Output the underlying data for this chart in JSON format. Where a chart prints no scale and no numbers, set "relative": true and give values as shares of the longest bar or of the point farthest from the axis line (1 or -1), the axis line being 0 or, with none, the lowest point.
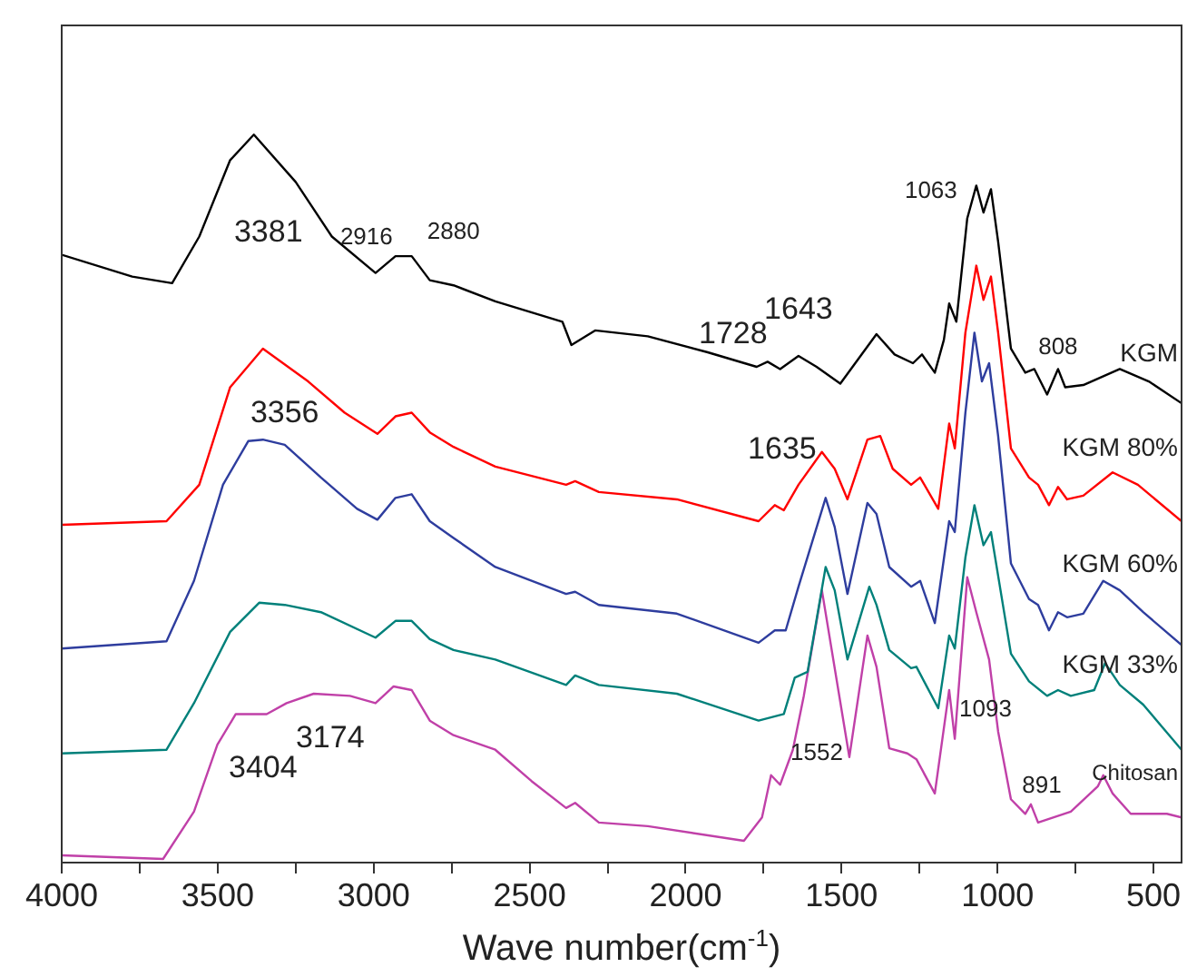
{
  "chart_data": {
    "type": "line",
    "xlabel": "Wave number(cm$^{-1}$)",
    "relative": true,
    "xlim": [
      4000,
      410
    ],
    "xticks": [
      4000,
      {
        "value": 3750,
        "label": null
      },
      3500,
      {
        "value": 3250,
        "label": null
      },
      3000,
      {
        "value": 2750,
        "label": null
      },
      2500,
      {
        "value": 2250,
        "label": null
      },
      2000,
      {
        "value": 1750,
        "label": null
      },
      1500,
      {
        "value": 1250,
        "label": null
      },
      1000,
      {
        "value": 750,
        "label": null
      },
      500
    ],
    "tick_labels": "x",
    "grid": false,
    "legend": false,
    "marker": "none",
    "line_style": "solid",
    "series": [
      {
        "name": "KGM",
        "color": "#000000",
        "x": [
          4000,
          3774,
          3646,
          3559,
          3460,
          3384,
          3250,
          3134,
          2994,
          2930,
          2878,
          2820,
          2744,
          2610,
          2395,
          2366,
          2290,
          2121,
          1929,
          1772,
          1737,
          1697,
          1638,
          1580,
          1504,
          1388,
          1330,
          1271,
          1242,
          1201,
          1172,
          1155,
          1132,
          1097,
          1068,
          1045,
          1021,
          998,
          957,
          911,
          882,
          841,
          806,
          783,
          725,
          608,
          515,
          410
        ],
        "values": [
          0.835,
          0.805,
          0.796,
          0.86,
          0.965,
          1,
          0.935,
          0.86,
          0.81,
          0.833,
          0.833,
          0.8,
          0.793,
          0.771,
          0.743,
          0.711,
          0.731,
          0.723,
          0.701,
          0.681,
          0.688,
          0.678,
          0.696,
          0.681,
          0.658,
          0.726,
          0.698,
          0.686,
          0.698,
          0.673,
          0.718,
          0.768,
          0.743,
          0.885,
          0.93,
          0.893,
          0.925,
          0.853,
          0.706,
          0.673,
          0.678,
          0.643,
          0.678,
          0.653,
          0.656,
          0.678,
          0.661,
          0.631
        ]
      },
      {
        "name": "KGM 80%",
        "color": "#ff0000",
        "x": [
          4000,
          3664,
          3559,
          3460,
          3355,
          3210,
          3093,
          2988,
          2930,
          2878,
          2820,
          2744,
          2610,
          2383,
          2354,
          2278,
          2028,
          1766,
          1714,
          1685,
          1638,
          1563,
          1522,
          1481,
          1417,
          1376,
          1336,
          1277,
          1248,
          1190,
          1155,
          1137,
          1103,
          1068,
          1045,
          1021,
          998,
          957,
          899,
          870,
          835,
          806,
          777,
          725,
          631,
          550,
          410
        ],
        "values": [
          0.464,
          0.469,
          0.519,
          0.653,
          0.706,
          0.661,
          0.618,
          0.589,
          0.613,
          0.618,
          0.591,
          0.571,
          0.544,
          0.519,
          0.524,
          0.509,
          0.499,
          0.469,
          0.491,
          0.484,
          0.519,
          0.564,
          0.541,
          0.499,
          0.581,
          0.586,
          0.541,
          0.519,
          0.529,
          0.486,
          0.603,
          0.569,
          0.728,
          0.82,
          0.773,
          0.805,
          0.728,
          0.569,
          0.529,
          0.519,
          0.491,
          0.516,
          0.499,
          0.504,
          0.536,
          0.519,
          0.469
        ]
      },
      {
        "name": "KGM 60%",
        "color": "#2e3d9e",
        "x": [
          4000,
          3664,
          3576,
          3483,
          3402,
          3355,
          3285,
          3169,
          3053,
          2988,
          2930,
          2878,
          2820,
          2744,
          2610,
          2383,
          2354,
          2278,
          2028,
          1766,
          1714,
          1679,
          1638,
          1551,
          1522,
          1481,
          1417,
          1388,
          1347,
          1277,
          1248,
          1201,
          1155,
          1137,
          1103,
          1074,
          1050,
          1027,
          998,
          957,
          899,
          870,
          835,
          806,
          777,
          725,
          661,
          608,
          533,
          410
        ],
        "values": [
          0.294,
          0.304,
          0.387,
          0.519,
          0.579,
          0.581,
          0.574,
          0.529,
          0.486,
          0.471,
          0.501,
          0.506,
          0.469,
          0.446,
          0.406,
          0.369,
          0.372,
          0.354,
          0.342,
          0.302,
          0.319,
          0.319,
          0.379,
          0.501,
          0.461,
          0.369,
          0.494,
          0.479,
          0.406,
          0.379,
          0.387,
          0.329,
          0.469,
          0.454,
          0.618,
          0.728,
          0.661,
          0.686,
          0.586,
          0.411,
          0.362,
          0.354,
          0.319,
          0.344,
          0.337,
          0.342,
          0.387,
          0.374,
          0.344,
          0.299
        ]
      },
      {
        "name": "KGM 33%",
        "color": "#00807a",
        "x": [
          4000,
          3664,
          3576,
          3460,
          3367,
          3285,
          3169,
          2994,
          2930,
          2878,
          2820,
          2744,
          2610,
          2383,
          2354,
          2278,
          2028,
          1766,
          1685,
          1650,
          1609,
          1551,
          1522,
          1481,
          1411,
          1388,
          1347,
          1277,
          1260,
          1190,
          1155,
          1137,
          1103,
          1074,
          1045,
          1021,
          998,
          957,
          899,
          841,
          806,
          765,
          690,
          655,
          608,
          533,
          410
        ],
        "values": [
          0.15,
          0.155,
          0.219,
          0.317,
          0.357,
          0.354,
          0.344,
          0.309,
          0.332,
          0.332,
          0.307,
          0.292,
          0.279,
          0.244,
          0.257,
          0.244,
          0.232,
          0.195,
          0.204,
          0.254,
          0.262,
          0.406,
          0.374,
          0.279,
          0.379,
          0.354,
          0.292,
          0.267,
          0.269,
          0.212,
          0.312,
          0.294,
          0.419,
          0.491,
          0.436,
          0.454,
          0.394,
          0.287,
          0.249,
          0.229,
          0.237,
          0.229,
          0.237,
          0.274,
          0.244,
          0.217,
          0.155
        ]
      },
      {
        "name": "Chitosan",
        "color": "#c040a8",
        "x": [
          4000,
          3675,
          3576,
          3501,
          3442,
          3343,
          3279,
          3192,
          3076,
          2994,
          2936,
          2878,
          2820,
          2744,
          2610,
          2494,
          2383,
          2354,
          2278,
          2121,
          1813,
          1755,
          1726,
          1697,
          1656,
          1621,
          1563,
          1475,
          1417,
          1388,
          1347,
          1289,
          1260,
          1201,
          1155,
          1137,
          1097,
          1068,
          1027,
          998,
          957,
          911,
          893,
          870,
          765,
          678,
          661,
          631,
          573,
          457,
          410
        ],
        "values": [
          0.01,
          0.005,
          0.07,
          0.162,
          0.204,
          0.204,
          0.219,
          0.232,
          0.229,
          0.219,
          0.242,
          0.237,
          0.195,
          0.175,
          0.155,
          0.112,
          0.075,
          0.082,
          0.055,
          0.05,
          0.03,
          0.062,
          0.12,
          0.107,
          0.155,
          0.229,
          0.374,
          0.145,
          0.312,
          0.269,
          0.157,
          0.15,
          0.142,
          0.095,
          0.237,
          0.17,
          0.392,
          0.344,
          0.279,
          0.18,
          0.087,
          0.067,
          0.08,
          0.055,
          0.07,
          0.105,
          0.12,
          0.095,
          0.067,
          0.067,
          0.062
        ]
      }
    ],
    "annotations": [
      {
        "text": "3381",
        "x": 3384,
        "y": 1
      },
      {
        "text": "2916",
        "x": 2930,
        "y": 0.833
      },
      {
        "text": "2880",
        "x": 2878,
        "y": 0.833
      },
      {
        "text": "1063",
        "x": 1068,
        "y": 0.93
      },
      {
        "text": "1728",
        "x": 1737,
        "y": 0.688
      },
      {
        "text": "1643",
        "x": 1638,
        "y": 0.696
      },
      {
        "text": "808",
        "x": 806,
        "y": 0.678
      },
      {
        "text": "3356",
        "x": 3355,
        "y": 0.706
      },
      {
        "text": "1635",
        "x": 1638,
        "y": 0.519
      },
      {
        "text": "3174",
        "x": 3192,
        "y": 0.232
      },
      {
        "text": "3404",
        "x": 3442,
        "y": 0.204
      },
      "1552",
      "1093",
      {
        "text": "891",
        "x": 893,
        "y": 0.08
      }
    ]
  }
}
